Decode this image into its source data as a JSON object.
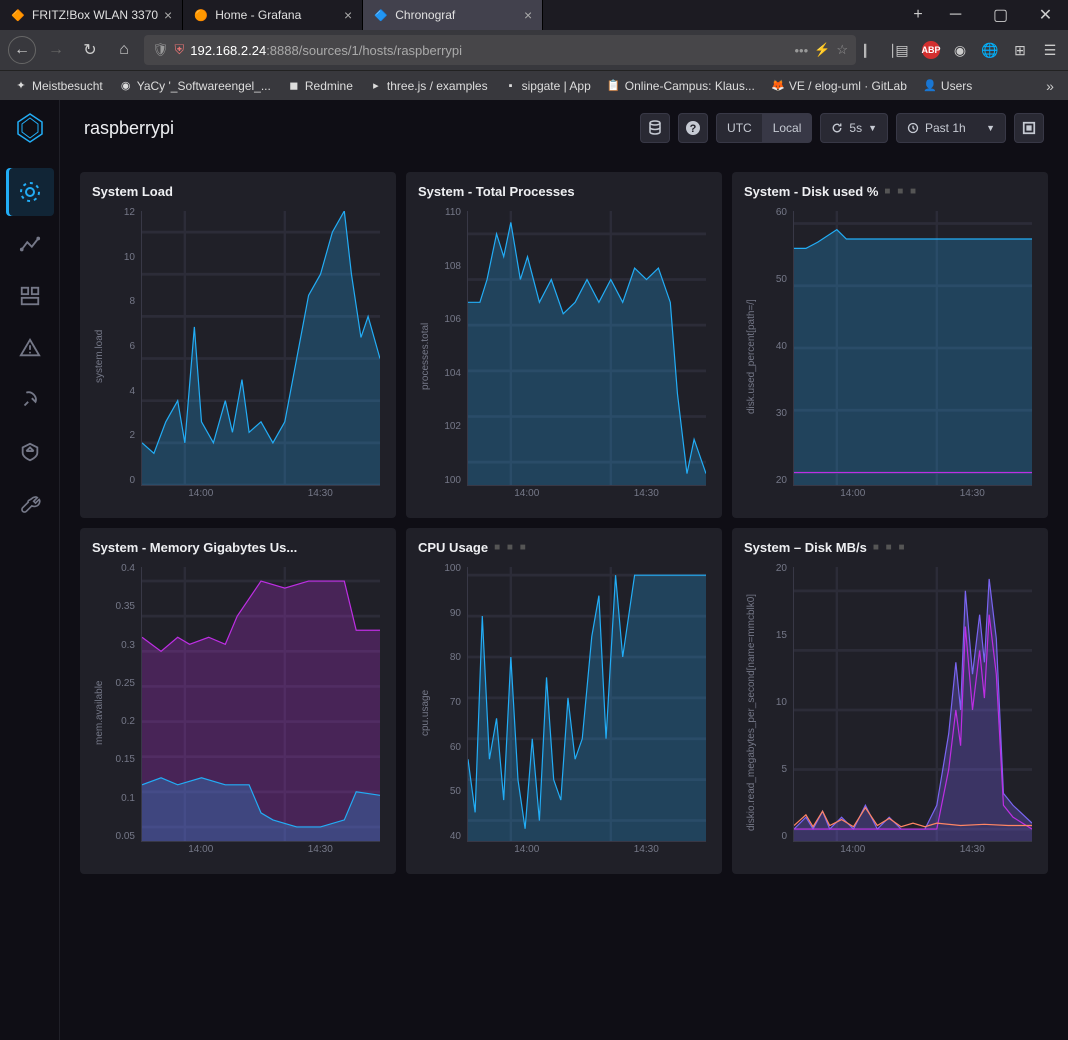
{
  "browser": {
    "tabs": [
      {
        "title": "FRITZ!Box WLAN 3370",
        "favicon": "🔶",
        "active": false
      },
      {
        "title": "Home - Grafana",
        "favicon": "🟠",
        "active": false
      },
      {
        "title": "Chronograf",
        "favicon": "🔷",
        "active": true
      }
    ],
    "url_host": "192.168.2.24",
    "url_port": ":8888",
    "url_path": "/sources/1/hosts/raspberrypi",
    "bookmarks": [
      {
        "label": "Meistbesucht",
        "icon": "✦"
      },
      {
        "label": "YaCy '_Softwareengel_...",
        "icon": "◉"
      },
      {
        "label": "Redmine",
        "icon": "◼"
      },
      {
        "label": "three.js / examples",
        "icon": "▸"
      },
      {
        "label": "sipgate | App",
        "icon": "▪"
      },
      {
        "label": "Online-Campus: Klaus...",
        "icon": "📋"
      },
      {
        "label": "VE / elog-uml · GitLab",
        "icon": "🦊"
      },
      {
        "label": "Users",
        "icon": "👤"
      }
    ]
  },
  "app": {
    "page_title": "raspberrypi",
    "timezone_utc": "UTC",
    "timezone_local": "Local",
    "refresh_label": "5s",
    "timerange_label": "Past 1h"
  },
  "colors": {
    "teal": "#22adf6",
    "teal_fill": "rgba(34,173,246,0.25)",
    "purple": "#be2ee4",
    "purple_fill": "rgba(190,46,228,0.25)",
    "blue": "#7a65f2",
    "blue_fill": "rgba(122,101,242,0.3)",
    "orange": "#ff8564",
    "axis": "#757888"
  },
  "charts": [
    {
      "title": "System Load",
      "ylabel": "system.load",
      "yticks": [
        "0",
        "2",
        "4",
        "6",
        "8",
        "10",
        "12"
      ],
      "xticks": [
        "14:00",
        "14:30"
      ],
      "ylim": [
        0,
        13
      ],
      "series": [
        {
          "color_key": "teal",
          "fill_key": "teal_fill",
          "points": [
            [
              0,
              2
            ],
            [
              5,
              1.5
            ],
            [
              10,
              3
            ],
            [
              15,
              4
            ],
            [
              18,
              2
            ],
            [
              22,
              7.5
            ],
            [
              25,
              3
            ],
            [
              30,
              2
            ],
            [
              35,
              4
            ],
            [
              38,
              2.5
            ],
            [
              42,
              5
            ],
            [
              45,
              2.5
            ],
            [
              50,
              3
            ],
            [
              55,
              2
            ],
            [
              60,
              3
            ],
            [
              65,
              6
            ],
            [
              70,
              9
            ],
            [
              75,
              10
            ],
            [
              80,
              12
            ],
            [
              85,
              13
            ],
            [
              88,
              10
            ],
            [
              92,
              7
            ],
            [
              95,
              8
            ],
            [
              100,
              6
            ]
          ]
        }
      ]
    },
    {
      "title": "System - Total Processes",
      "ylabel": "processes.total",
      "yticks": [
        "100",
        "102",
        "104",
        "106",
        "108",
        "110"
      ],
      "xticks": [
        "14:00",
        "14:30"
      ],
      "ylim": [
        99,
        111
      ],
      "series": [
        {
          "color_key": "teal",
          "fill_key": "teal_fill",
          "points": [
            [
              0,
              107
            ],
            [
              5,
              107
            ],
            [
              8,
              108
            ],
            [
              12,
              110
            ],
            [
              15,
              109
            ],
            [
              18,
              110.5
            ],
            [
              22,
              108
            ],
            [
              25,
              109
            ],
            [
              30,
              107
            ],
            [
              35,
              108
            ],
            [
              40,
              106.5
            ],
            [
              45,
              107
            ],
            [
              50,
              108
            ],
            [
              55,
              107
            ],
            [
              60,
              108
            ],
            [
              65,
              107
            ],
            [
              70,
              108.5
            ],
            [
              75,
              108
            ],
            [
              80,
              108.5
            ],
            [
              85,
              107
            ],
            [
              88,
              103
            ],
            [
              92,
              99.5
            ],
            [
              95,
              101
            ],
            [
              100,
              99.5
            ]
          ]
        }
      ]
    },
    {
      "title": "System - Disk used %",
      "dots": true,
      "ylabel": "disk.used_percent[path=/]",
      "yticks": [
        "20",
        "30",
        "40",
        "50",
        "60"
      ],
      "xticks": [
        "14:00",
        "14:30"
      ],
      "ylim": [
        18,
        62
      ],
      "series": [
        {
          "color_key": "teal",
          "fill_key": "teal_fill",
          "points": [
            [
              0,
              56
            ],
            [
              5,
              56
            ],
            [
              10,
              57
            ],
            [
              18,
              59
            ],
            [
              22,
              57.5
            ],
            [
              25,
              57.5
            ],
            [
              100,
              57.5
            ]
          ]
        },
        {
          "color_key": "purple",
          "points": [
            [
              0,
              20
            ],
            [
              100,
              20
            ]
          ]
        }
      ]
    },
    {
      "title": "System - Memory Gigabytes Us...",
      "ylabel": "mem.available",
      "yticks": [
        "0.05",
        "0.1",
        "0.15",
        "0.2",
        "0.25",
        "0.3",
        "0.35",
        "0.4"
      ],
      "xticks": [
        "14:00",
        "14:30"
      ],
      "ylim": [
        0.03,
        0.42
      ],
      "series": [
        {
          "color_key": "purple",
          "fill_key": "purple_fill",
          "points": [
            [
              0,
              0.32
            ],
            [
              8,
              0.3
            ],
            [
              15,
              0.32
            ],
            [
              20,
              0.31
            ],
            [
              28,
              0.32
            ],
            [
              35,
              0.31
            ],
            [
              40,
              0.35
            ],
            [
              50,
              0.4
            ],
            [
              60,
              0.39
            ],
            [
              70,
              0.4
            ],
            [
              80,
              0.4
            ],
            [
              85,
              0.4
            ],
            [
              90,
              0.33
            ],
            [
              100,
              0.33
            ]
          ]
        },
        {
          "color_key": "teal",
          "fill_key": "teal_fill",
          "points": [
            [
              0,
              0.11
            ],
            [
              8,
              0.12
            ],
            [
              15,
              0.11
            ],
            [
              25,
              0.12
            ],
            [
              35,
              0.11
            ],
            [
              45,
              0.11
            ],
            [
              50,
              0.07
            ],
            [
              55,
              0.06
            ],
            [
              65,
              0.05
            ],
            [
              75,
              0.05
            ],
            [
              85,
              0.06
            ],
            [
              90,
              0.1
            ],
            [
              100,
              0.095
            ]
          ]
        }
      ]
    },
    {
      "title": "CPU Usage",
      "dots": true,
      "ylabel": "cpu.usage",
      "yticks": [
        "40",
        "50",
        "60",
        "70",
        "80",
        "90",
        "100"
      ],
      "xticks": [
        "14:00",
        "14:30"
      ],
      "ylim": [
        35,
        102
      ],
      "series": [
        {
          "color_key": "teal",
          "fill_key": "teal_fill",
          "points": [
            [
              0,
              55
            ],
            [
              3,
              42
            ],
            [
              6,
              90
            ],
            [
              9,
              55
            ],
            [
              12,
              65
            ],
            [
              15,
              45
            ],
            [
              18,
              80
            ],
            [
              21,
              50
            ],
            [
              24,
              38
            ],
            [
              27,
              60
            ],
            [
              30,
              40
            ],
            [
              33,
              75
            ],
            [
              36,
              50
            ],
            [
              39,
              45
            ],
            [
              42,
              70
            ],
            [
              45,
              55
            ],
            [
              48,
              60
            ],
            [
              52,
              85
            ],
            [
              55,
              95
            ],
            [
              58,
              60
            ],
            [
              62,
              100
            ],
            [
              65,
              80
            ],
            [
              70,
              100
            ],
            [
              100,
              100
            ]
          ]
        }
      ]
    },
    {
      "title": "System – Disk MB/s",
      "dots": true,
      "ylabel": "diskio.read_megabytes_per_second[name=mmcblk0]",
      "yticks": [
        "0",
        "5",
        "10",
        "15",
        "20"
      ],
      "xticks": [
        "14:00",
        "14:30"
      ],
      "ylim": [
        -1,
        22
      ],
      "series": [
        {
          "color_key": "blue",
          "fill_key": "blue_fill",
          "points": [
            [
              0,
              0
            ],
            [
              5,
              1
            ],
            [
              8,
              0
            ],
            [
              12,
              1.5
            ],
            [
              15,
              0
            ],
            [
              20,
              1
            ],
            [
              25,
              0
            ],
            [
              30,
              2
            ],
            [
              35,
              0
            ],
            [
              40,
              1
            ],
            [
              45,
              0
            ],
            [
              55,
              0
            ],
            [
              60,
              2
            ],
            [
              65,
              8
            ],
            [
              68,
              14
            ],
            [
              70,
              10
            ],
            [
              72,
              20
            ],
            [
              75,
              13
            ],
            [
              78,
              18
            ],
            [
              80,
              14
            ],
            [
              82,
              21
            ],
            [
              85,
              16
            ],
            [
              88,
              3
            ],
            [
              92,
              2
            ],
            [
              100,
              0.5
            ]
          ]
        },
        {
          "color_key": "purple",
          "points": [
            [
              0,
              0
            ],
            [
              60,
              0
            ],
            [
              65,
              5
            ],
            [
              68,
              10
            ],
            [
              70,
              7
            ],
            [
              72,
              17
            ],
            [
              75,
              10
            ],
            [
              78,
              15
            ],
            [
              80,
              11
            ],
            [
              82,
              18
            ],
            [
              85,
              13
            ],
            [
              88,
              2
            ],
            [
              92,
              1
            ],
            [
              100,
              0
            ]
          ]
        },
        {
          "color_key": "orange",
          "points": [
            [
              0,
              0.3
            ],
            [
              5,
              1.2
            ],
            [
              8,
              0.2
            ],
            [
              12,
              1.5
            ],
            [
              15,
              0.3
            ],
            [
              20,
              0.8
            ],
            [
              25,
              0.2
            ],
            [
              30,
              1.8
            ],
            [
              35,
              0.3
            ],
            [
              40,
              0.9
            ],
            [
              45,
              0.2
            ],
            [
              50,
              0.5
            ],
            [
              55,
              0.2
            ],
            [
              60,
              0.5
            ],
            [
              70,
              0.3
            ],
            [
              80,
              0.4
            ],
            [
              90,
              0.3
            ],
            [
              100,
              0.3
            ]
          ]
        }
      ]
    }
  ]
}
